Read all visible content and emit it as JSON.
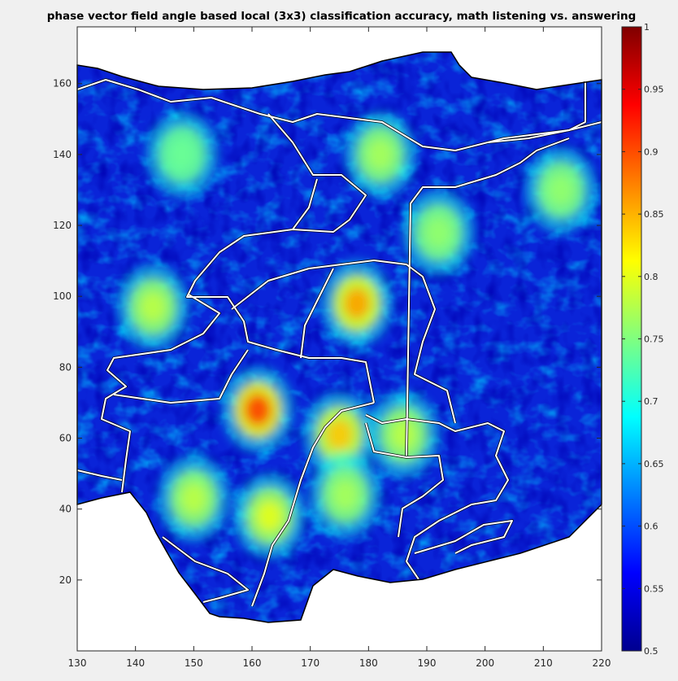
{
  "chart_data": {
    "type": "heatmap",
    "title": "phase vector field angle based local (3x3) classification accuracy, math listening vs. answering",
    "xlabel": "",
    "ylabel": "",
    "xlim": [
      130,
      220
    ],
    "ylim": [
      0,
      176
    ],
    "xticks": [
      "130",
      "140",
      "150",
      "160",
      "170",
      "180",
      "190",
      "200",
      "210",
      "220"
    ],
    "xtick_values": [
      130,
      140,
      150,
      160,
      170,
      180,
      190,
      200,
      210,
      220
    ],
    "yticks": [
      "20",
      "40",
      "60",
      "80",
      "100",
      "120",
      "140",
      "160"
    ],
    "ytick_values": [
      20,
      40,
      60,
      80,
      100,
      120,
      140,
      160
    ],
    "colormap": "jet",
    "clim": [
      0.5,
      1
    ],
    "colorbar_ticks": [
      "0.5",
      "0.55",
      "0.6",
      "0.65",
      "0.7",
      "0.75",
      "0.8",
      "0.85",
      "0.9",
      "0.95",
      "1"
    ],
    "colorbar_values": [
      0.5,
      0.55,
      0.6,
      0.65,
      0.7,
      0.75,
      0.8,
      0.85,
      0.9,
      0.95,
      1
    ],
    "grid": false,
    "hotspots": [
      {
        "x": 161,
        "y": 68,
        "value": 0.91
      },
      {
        "x": 178,
        "y": 98,
        "value": 0.86
      },
      {
        "x": 175,
        "y": 61,
        "value": 0.84
      },
      {
        "x": 163,
        "y": 38,
        "value": 0.8
      },
      {
        "x": 150,
        "y": 43,
        "value": 0.78
      },
      {
        "x": 176,
        "y": 44,
        "value": 0.77
      },
      {
        "x": 186,
        "y": 61,
        "value": 0.78
      },
      {
        "x": 182,
        "y": 140,
        "value": 0.77
      },
      {
        "x": 143,
        "y": 97,
        "value": 0.78
      },
      {
        "x": 213,
        "y": 130,
        "value": 0.76
      },
      {
        "x": 192,
        "y": 118,
        "value": 0.76
      },
      {
        "x": 148,
        "y": 140,
        "value": 0.74
      }
    ]
  }
}
